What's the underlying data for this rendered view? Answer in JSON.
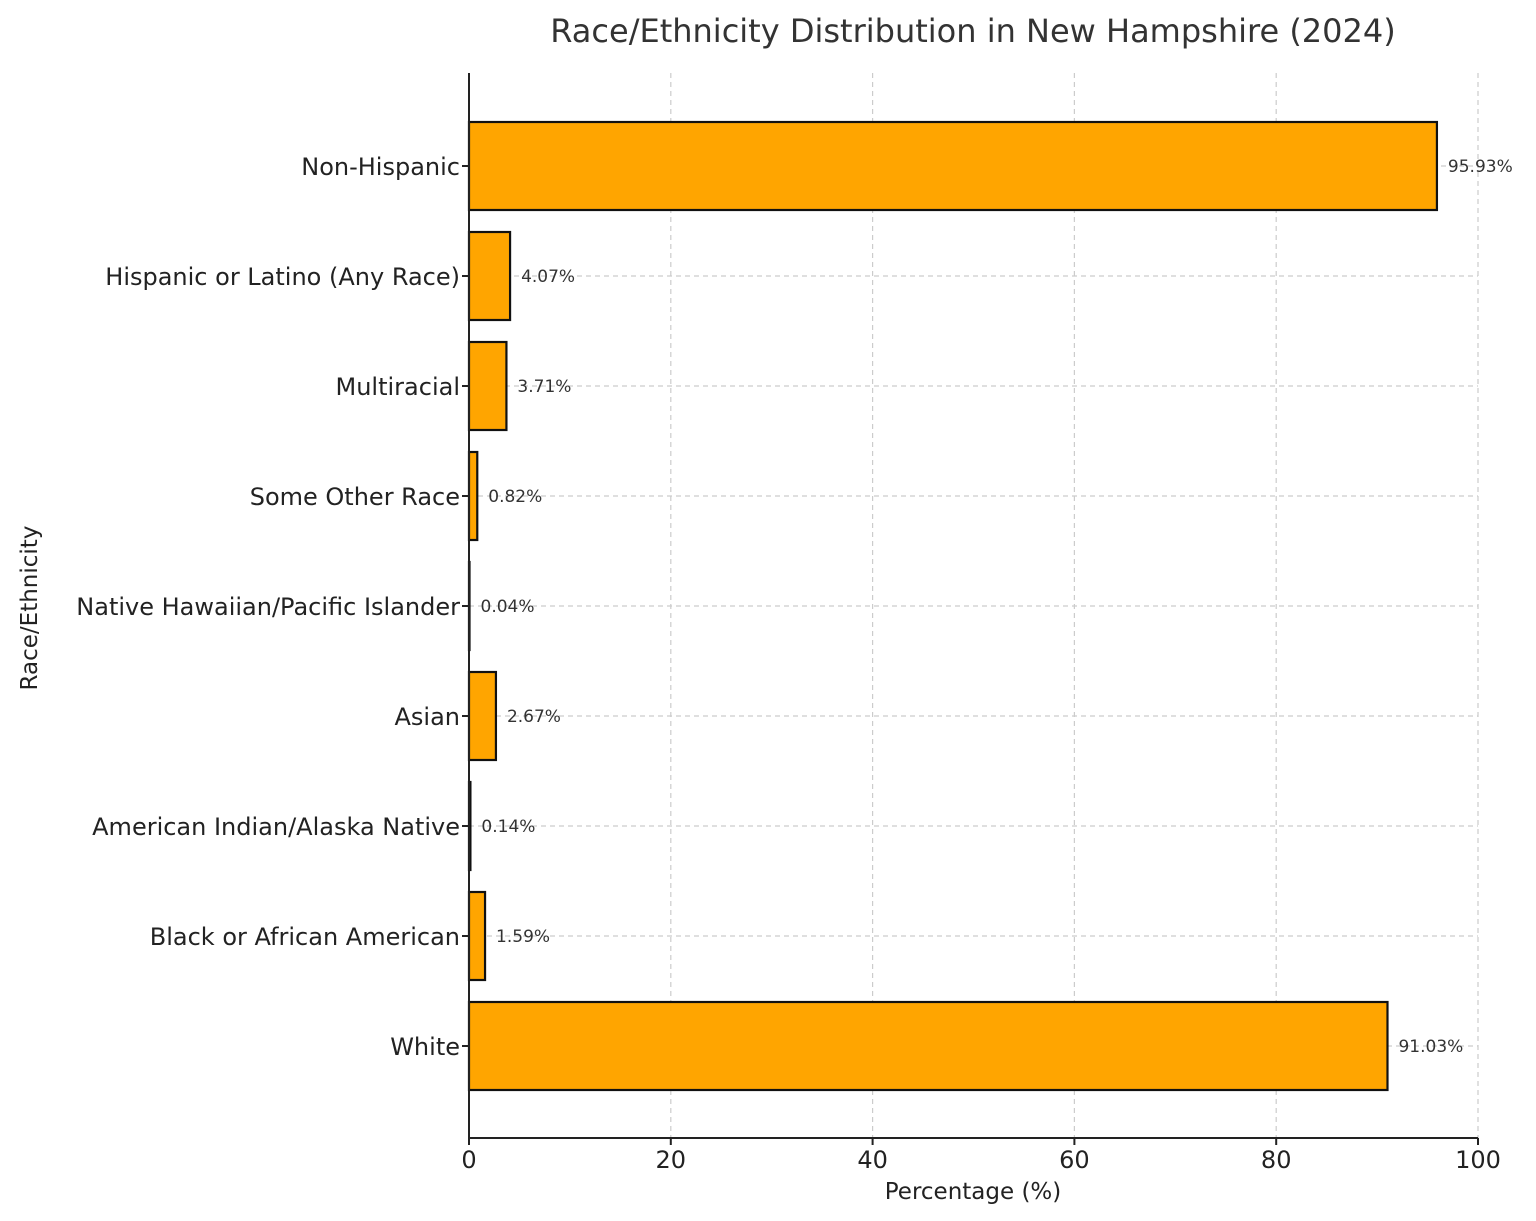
{
  "chart_data": {
    "type": "bar",
    "orientation": "horizontal",
    "title": "Race/Ethnicity Distribution in New Hampshire (2024)",
    "xlabel": "Percentage (%)",
    "ylabel": "Race/Ethnicity",
    "xlim": [
      0,
      100
    ],
    "xticks": [
      0,
      20,
      40,
      60,
      80,
      100
    ],
    "grid": true,
    "legend": null,
    "bar_color": "#FFA500",
    "edge_color": "#111111",
    "categories": [
      "White",
      "Black or African American",
      "American Indian/Alaska Native",
      "Asian",
      "Native Hawaiian/Pacific Islander",
      "Some Other Race",
      "Multiracial",
      "Hispanic or Latino (Any Race)",
      "Non-Hispanic"
    ],
    "values": [
      91.03,
      1.59,
      0.14,
      2.67,
      0.04,
      0.82,
      3.71,
      4.07,
      95.93
    ],
    "value_labels": [
      "91.03%",
      "1.59%",
      "0.14%",
      "2.67%",
      "0.04%",
      "0.82%",
      "3.71%",
      "4.07%",
      "95.93%"
    ]
  }
}
